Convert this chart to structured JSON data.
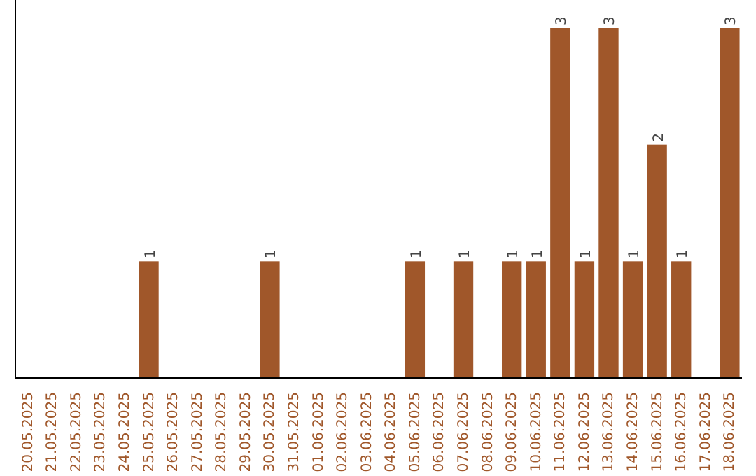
{
  "chart_data": {
    "type": "bar",
    "categories": [
      "20.05.2025",
      "21.05.2025",
      "22.05.2025",
      "23.05.2025",
      "24.05.2025",
      "25.05.2025",
      "26.05.2025",
      "27.05.2025",
      "28.05.2025",
      "29.05.2025",
      "30.05.2025",
      "31.05.2025",
      "01.06.2025",
      "02.06.2025",
      "03.06.2025",
      "04.06.2025",
      "05.06.2025",
      "06.06.2025",
      "07.06.2025",
      "08.06.2025",
      "09.06.2025",
      "10.06.2025",
      "11.06.2025",
      "12.06.2025",
      "13.06.2025",
      "14.06.2025",
      "15.06.2025",
      "16.06.2025",
      "17.06.2025",
      "18.06.2025"
    ],
    "values": [
      0,
      0,
      0,
      0,
      0,
      1,
      0,
      0,
      0,
      0,
      1,
      0,
      0,
      0,
      0,
      0,
      1,
      0,
      1,
      0,
      1,
      1,
      3,
      1,
      3,
      1,
      2,
      1,
      0,
      3
    ],
    "value_labels": [
      null,
      null,
      null,
      null,
      null,
      "1",
      null,
      null,
      null,
      null,
      "1",
      null,
      null,
      null,
      null,
      null,
      "1",
      null,
      "1",
      null,
      "1",
      "1",
      "3",
      "1",
      "3",
      "1",
      "2",
      "1",
      null,
      "3"
    ],
    "color": "#a0572a",
    "ylim": [
      0,
      3
    ],
    "tick_labels": "x"
  }
}
